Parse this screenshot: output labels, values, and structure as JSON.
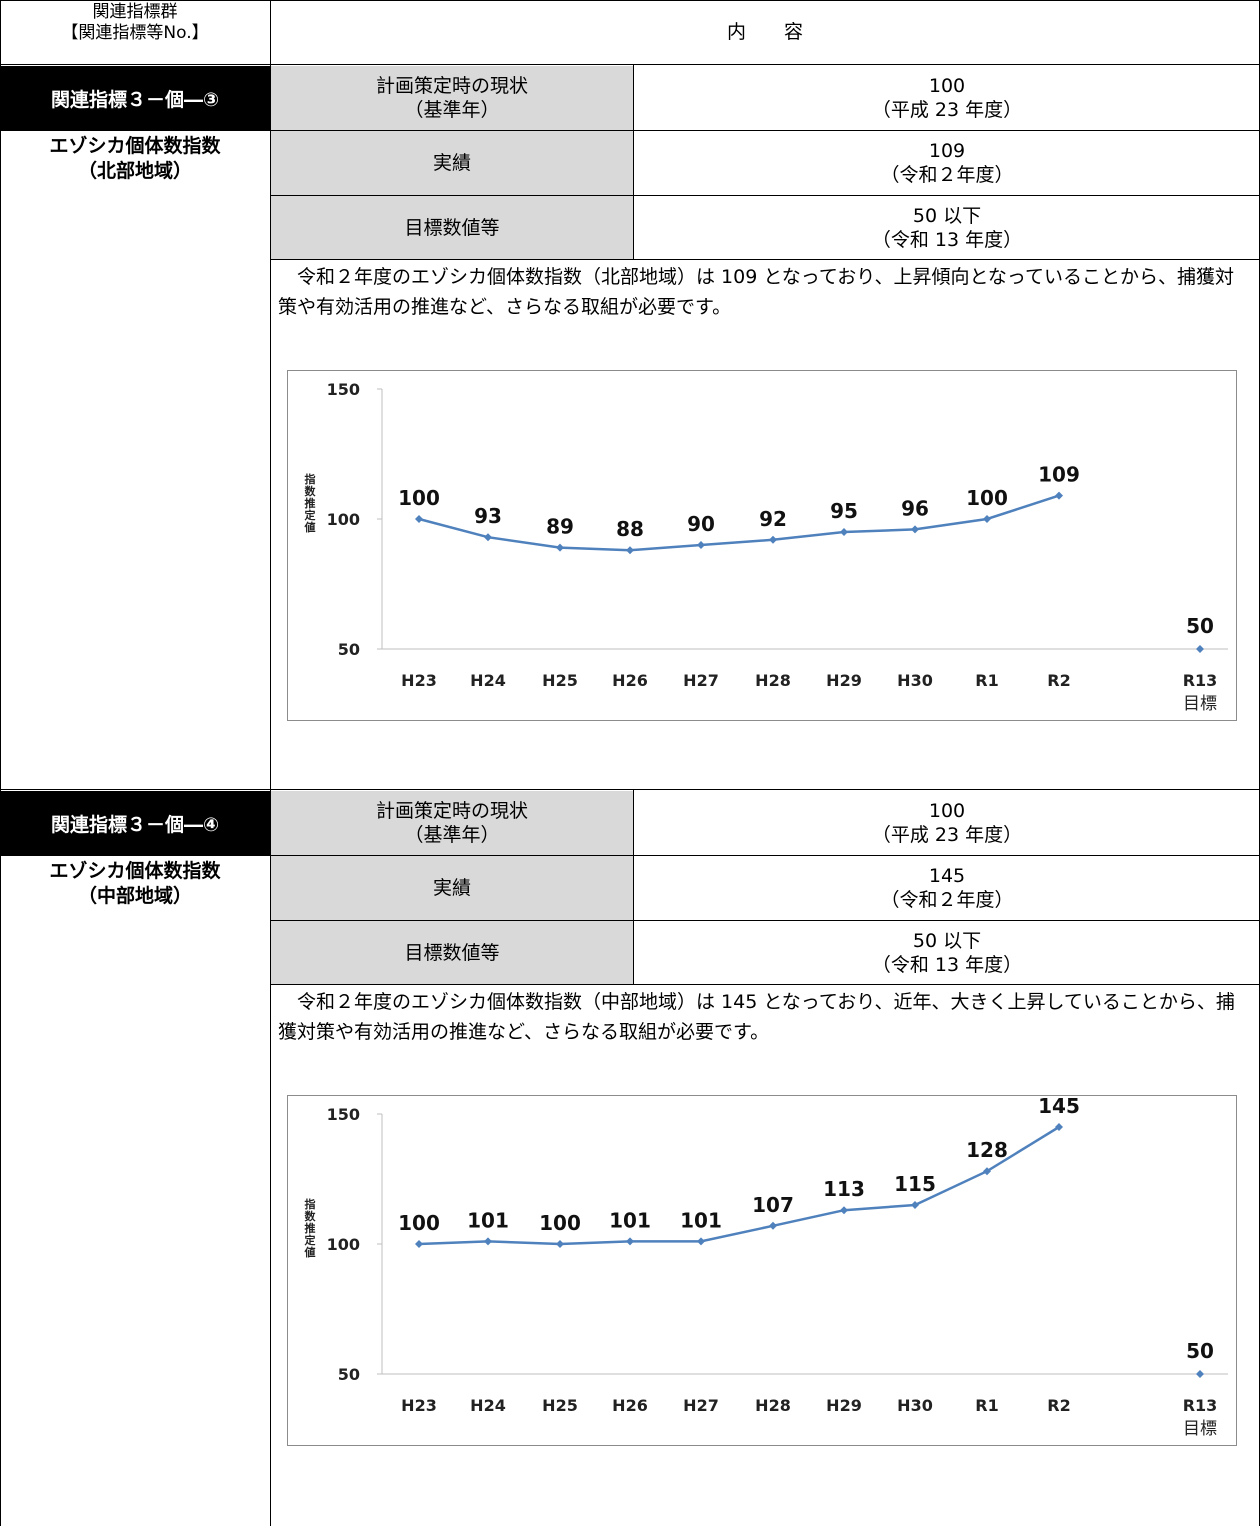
{
  "header": {
    "col1_line1": "関連指標群",
    "col1_line2": "【関連指標等No.】",
    "col2": "内　　容"
  },
  "sections": [
    {
      "badge": "関連指標３－個―③",
      "name_line1": "エゾシカ個体数指数",
      "name_line2": "（北部地域）",
      "rows": [
        {
          "label": [
            "計画策定時の現状",
            "（基準年）"
          ],
          "value": [
            "100",
            "（平成 23 年度）"
          ]
        },
        {
          "label": [
            "実績"
          ],
          "value": [
            "109",
            "（令和２年度）"
          ]
        },
        {
          "label": [
            "目標数値等"
          ],
          "value": [
            "50 以下",
            "（令和 13 年度）"
          ]
        }
      ],
      "description": "　令和２年度のエゾシカ個体数指数（北部地域）は 109 となっており、上昇傾向となっていることから、捕獲対策や有効活用の推進など、さらなる取組が必要です。"
    },
    {
      "badge": "関連指標３－個―④",
      "name_line1": "エゾシカ個体数指数",
      "name_line2": "（中部地域）",
      "rows": [
        {
          "label": [
            "計画策定時の現状",
            "（基準年）"
          ],
          "value": [
            "100",
            "（平成 23 年度）"
          ]
        },
        {
          "label": [
            "実績"
          ],
          "value": [
            "145",
            "（令和２年度）"
          ]
        },
        {
          "label": [
            "目標数値等"
          ],
          "value": [
            "50 以下",
            "（令和 13 年度）"
          ]
        }
      ],
      "description": "　令和２年度のエゾシカ個体数指数（中部地域）は 145 となっており、近年、大きく上昇していることから、捕獲対策や有効活用の推進など、さらなる取組が必要です。"
    }
  ],
  "chart_data": [
    {
      "type": "line",
      "title": "",
      "ylabel": "指数推定値",
      "xlabel": "",
      "ylim": [
        50,
        150
      ],
      "yticks": [
        50,
        100,
        150
      ],
      "categories": [
        "H23",
        "H24",
        "H25",
        "H26",
        "H27",
        "H28",
        "H29",
        "H30",
        "R1",
        "R2",
        "R13"
      ],
      "category_sublabels": {
        "R13": "目標"
      },
      "series": [
        {
          "values": [
            100,
            93,
            89,
            88,
            90,
            92,
            95,
            96,
            100,
            109,
            null
          ]
        }
      ],
      "target_point": {
        "category": "R13",
        "value": 50
      },
      "color": "#4f81bd",
      "grid": false
    },
    {
      "type": "line",
      "title": "",
      "ylabel": "指数推定値",
      "xlabel": "",
      "ylim": [
        50,
        150
      ],
      "yticks": [
        50,
        100,
        150
      ],
      "categories": [
        "H23",
        "H24",
        "H25",
        "H26",
        "H27",
        "H28",
        "H29",
        "H30",
        "R1",
        "R2",
        "R13"
      ],
      "category_sublabels": {
        "R13": "目標"
      },
      "series": [
        {
          "values": [
            100,
            101,
            100,
            101,
            101,
            107,
            113,
            115,
            128,
            145,
            null
          ]
        }
      ],
      "target_point": {
        "category": "R13",
        "value": 50
      },
      "color": "#4f81bd",
      "grid": false
    }
  ]
}
